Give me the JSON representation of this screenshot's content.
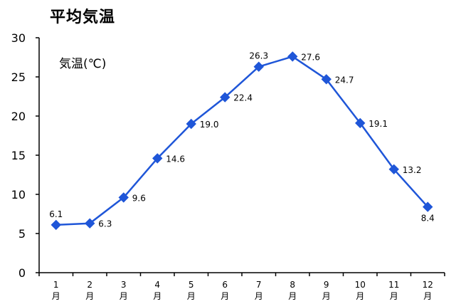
{
  "chart_data": {
    "type": "line",
    "title": "平均気温",
    "series_label": "気温(℃)",
    "categories": [
      {
        "num": "1",
        "unit": "月"
      },
      {
        "num": "2",
        "unit": "月"
      },
      {
        "num": "3",
        "unit": "月"
      },
      {
        "num": "4",
        "unit": "月"
      },
      {
        "num": "5",
        "unit": "月"
      },
      {
        "num": "6",
        "unit": "月"
      },
      {
        "num": "7",
        "unit": "月"
      },
      {
        "num": "8",
        "unit": "月"
      },
      {
        "num": "9",
        "unit": "月"
      },
      {
        "num": "10",
        "unit": "月"
      },
      {
        "num": "11",
        "unit": "月"
      },
      {
        "num": "12",
        "unit": "月"
      }
    ],
    "series": [
      {
        "name": "気温(℃)",
        "values": [
          6.1,
          6.3,
          9.6,
          14.6,
          19.0,
          22.4,
          26.3,
          27.6,
          24.7,
          19.1,
          13.2,
          8.4
        ],
        "data_labels": [
          "6.1",
          "6.3",
          "9.6",
          "14.6",
          "19.0",
          "22.4",
          "26.3",
          "27.6",
          "24.7",
          "19.1",
          "13.2",
          "8.4"
        ],
        "label_positions": [
          "above",
          "right",
          "right",
          "right",
          "right",
          "right",
          "above",
          "right",
          "right",
          "right",
          "right",
          "below"
        ],
        "color": "#1f56d8",
        "marker": "diamond"
      }
    ],
    "yticks": [
      "0",
      "5",
      "10",
      "15",
      "20",
      "25",
      "30"
    ],
    "ylim": [
      0,
      30
    ],
    "grid": false,
    "axis_color": "#000000"
  }
}
